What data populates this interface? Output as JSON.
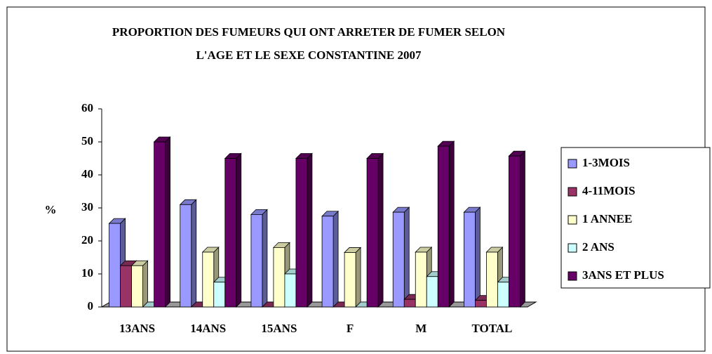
{
  "chart_data": {
    "type": "bar3d",
    "title": [
      "PROPORTION DES FUMEURS QUI ONT ARRETER DE FUMER SELON",
      "L'AGE ET LE SEXE CONSTANTINE 2007"
    ],
    "y_label": "%",
    "categories": [
      "13ANS",
      "14ANS",
      "15ANS",
      "F",
      "M",
      "TOTAL"
    ],
    "series": [
      {
        "name": "1-3MOIS",
        "color": "#9999ff",
        "values": [
          25.3,
          31,
          28,
          27.5,
          28.7,
          28.7
        ]
      },
      {
        "name": "4-11MOIS",
        "color": "#993366",
        "values": [
          12.5,
          0,
          0,
          0,
          2.3,
          2
        ]
      },
      {
        "name": "1 ANNEE",
        "color": "#ffffcc",
        "values": [
          12.5,
          16.6,
          18,
          16.5,
          16.6,
          16.6
        ]
      },
      {
        "name": "2 ANS",
        "color": "#ccffff",
        "values": [
          0,
          7.5,
          10,
          0,
          9.2,
          7.5
        ]
      },
      {
        "name": "3ANS ET PLUS",
        "color": "#660066",
        "values": [
          50,
          45,
          45,
          45,
          48.7,
          45.7
        ]
      }
    ],
    "ylim": [
      0,
      60
    ],
    "yticks": [
      0,
      10,
      20,
      30,
      40,
      50,
      60
    ],
    "legend": "right"
  }
}
